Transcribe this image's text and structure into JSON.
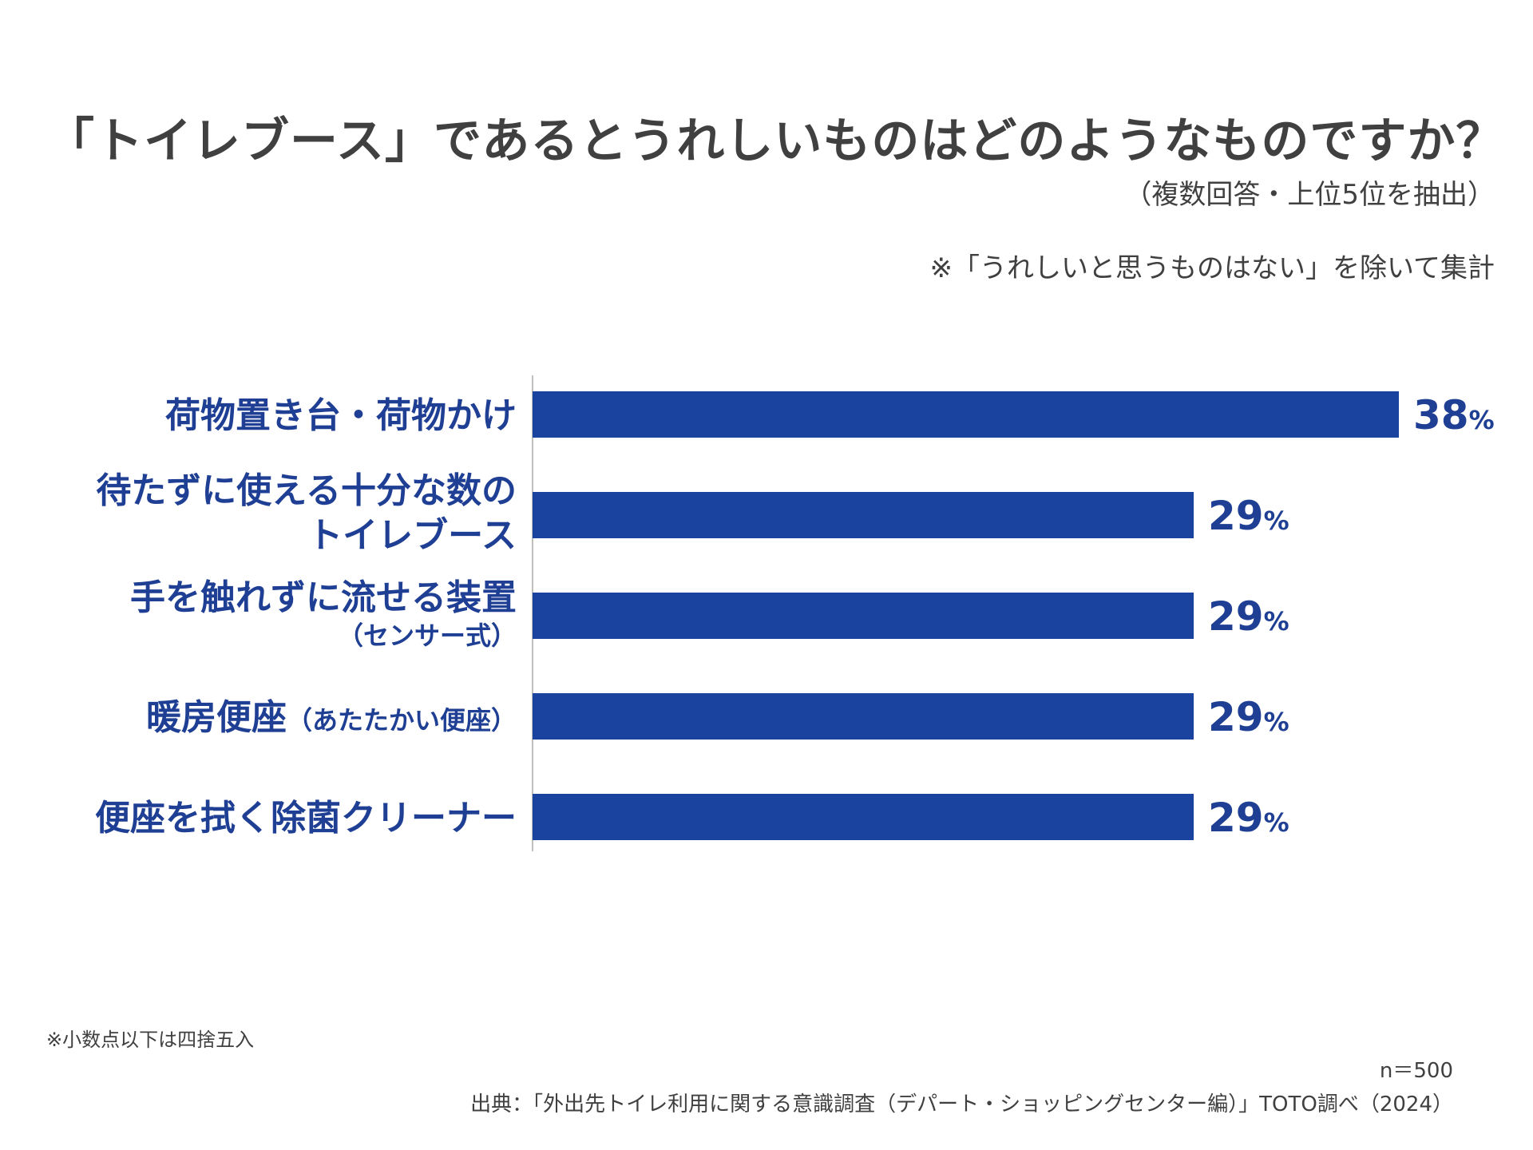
{
  "title": "「トイレブース」であるとうれしいものはどのようなものですか？",
  "subtitle": "（複数回答・上位5位を抽出）",
  "note": "※「うれしいと思うものはない」を除いて集計",
  "footnote": "※小数点以下は四捨五入",
  "sample_size": "n＝500",
  "source": "出典：「外出先トイレ利用に関する意識調査（デパート・ショッピングセンター編）」TOTO調べ（2024）",
  "colors": {
    "bar": "#1a43a0",
    "label": "#1f3f94",
    "axis": "#bfbfbf",
    "text": "#404040"
  },
  "chart_data": {
    "type": "bar",
    "orientation": "horizontal",
    "title": "「トイレブース」であるとうれしいものはどのようなものですか？",
    "unit": "%",
    "xlim": [
      0,
      38
    ],
    "categories": [
      {
        "lines": [
          "荷物置き台・荷物かけ"
        ],
        "sub": ""
      },
      {
        "lines": [
          "待たずに使える十分な数の",
          "トイレブース"
        ],
        "sub": ""
      },
      {
        "lines": [
          "手を触れずに流せる装置"
        ],
        "sub": "（センサー式）"
      },
      {
        "lines": [
          "暖房便座"
        ],
        "sub": "（あたたかい便座）",
        "sub_inline": true
      },
      {
        "lines": [
          "便座を拭く除菌クリーナー"
        ],
        "sub": ""
      }
    ],
    "values": [
      38,
      29,
      29,
      29,
      29
    ],
    "value_labels": [
      "38",
      "29",
      "29",
      "29",
      "29"
    ]
  }
}
